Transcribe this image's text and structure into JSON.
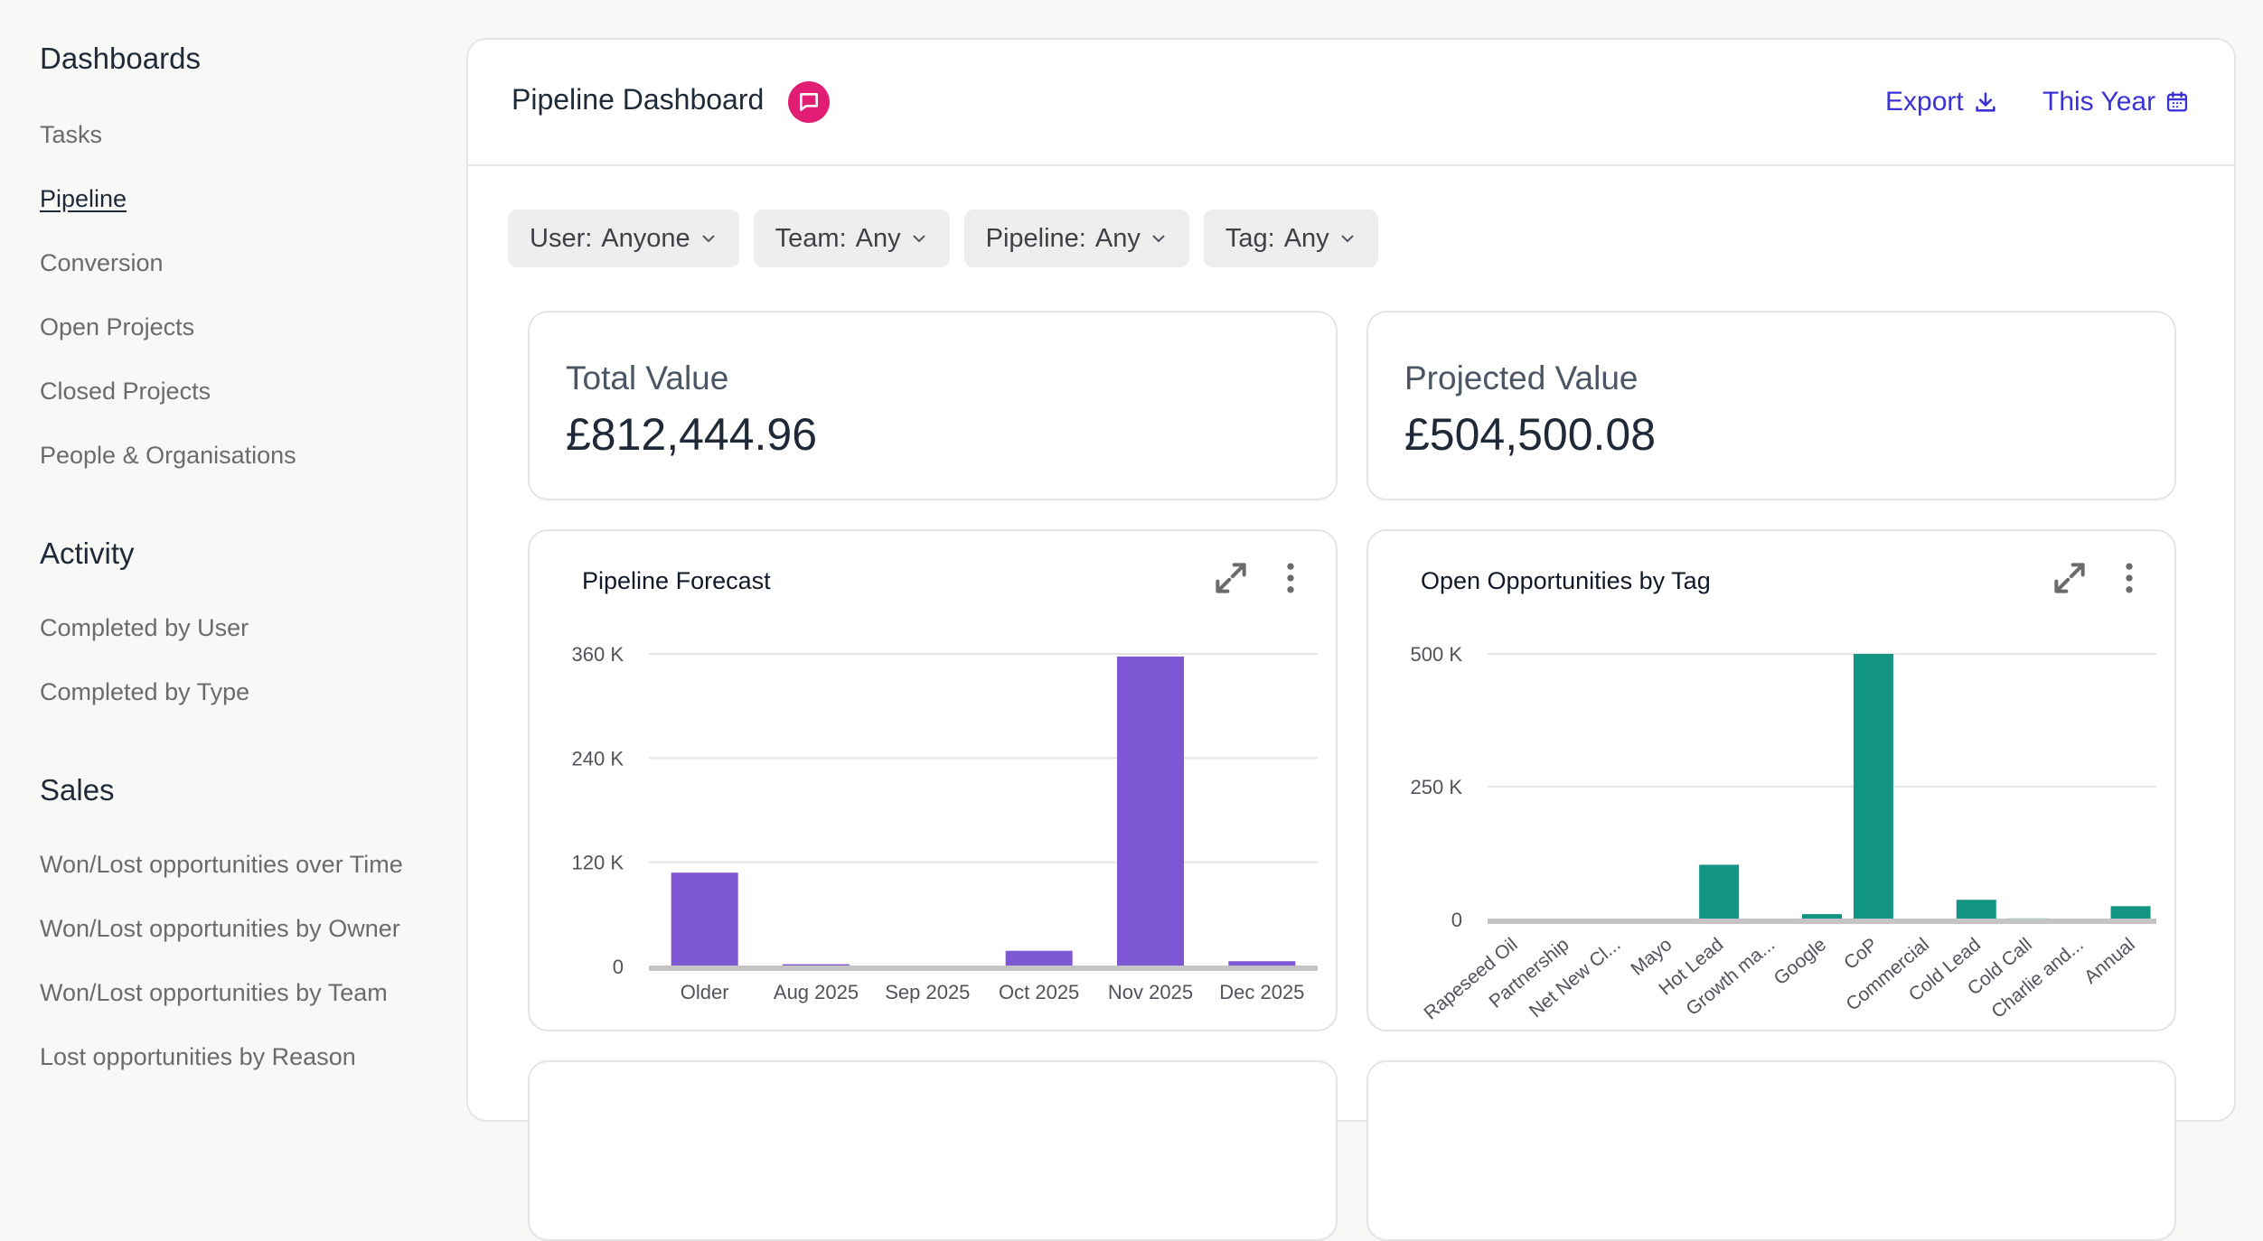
{
  "sidebar": {
    "sections": [
      {
        "heading": "Dashboards",
        "items": [
          "Tasks",
          "Pipeline",
          "Conversion",
          "Open Projects",
          "Closed Projects",
          "People & Organisations"
        ]
      },
      {
        "heading": "Activity",
        "items": [
          "Completed by User",
          "Completed by Type"
        ]
      },
      {
        "heading": "Sales",
        "items": [
          "Won/Lost opportunities over Time",
          "Won/Lost opportunities by Owner",
          "Won/Lost opportunities by Team",
          "Lost opportunities by Reason"
        ]
      }
    ],
    "active_item": "Pipeline"
  },
  "header": {
    "title": "Pipeline Dashboard",
    "export_label": "Export",
    "period_label": "This Year"
  },
  "filters": [
    {
      "label": "User:",
      "value": "Anyone"
    },
    {
      "label": "Team:",
      "value": "Any"
    },
    {
      "label": "Pipeline:",
      "value": "Any"
    },
    {
      "label": "Tag:",
      "value": "Any"
    }
  ],
  "kpis": {
    "total": {
      "label": "Total Value",
      "value": "£812,444.96"
    },
    "projected": {
      "label": "Projected Value",
      "value": "£504,500.08"
    }
  },
  "colors": {
    "accent_link": "#3b32d6",
    "badge": "#e11d74",
    "forecast_bar": "#7e57d4",
    "tag_bar": "#129582"
  },
  "chart_data": [
    {
      "type": "bar",
      "title": "Pipeline Forecast",
      "categories": [
        "Older",
        "Aug 2025",
        "Sep 2025",
        "Oct 2025",
        "Nov 2025",
        "Dec 2025"
      ],
      "values": [
        108000,
        2500,
        500,
        18000,
        357000,
        6000
      ],
      "yticks": [
        0,
        120000,
        240000,
        360000
      ],
      "ytick_labels": [
        "0",
        "120 K",
        "240 K",
        "360 K"
      ],
      "ylim": [
        0,
        360000
      ],
      "grid": true
    },
    {
      "type": "bar",
      "title": "Open Opportunities by Tag",
      "categories": [
        "Rapeseed Oil",
        "Partnership",
        "Net New Cl...",
        "Mayo",
        "Hot Lead",
        "Growth ma...",
        "Google",
        "CoP",
        "Commercial",
        "Cold Lead",
        "Cold Call",
        "Charlie and...",
        "Annual"
      ],
      "values": [
        0,
        0,
        0,
        0,
        103000,
        0,
        10000,
        500000,
        0,
        37000,
        2000,
        0,
        25000
      ],
      "yticks": [
        0,
        250000,
        500000
      ],
      "ytick_labels": [
        "0",
        "250 K",
        "500 K"
      ],
      "ylim": [
        0,
        500000
      ],
      "grid": true
    }
  ]
}
